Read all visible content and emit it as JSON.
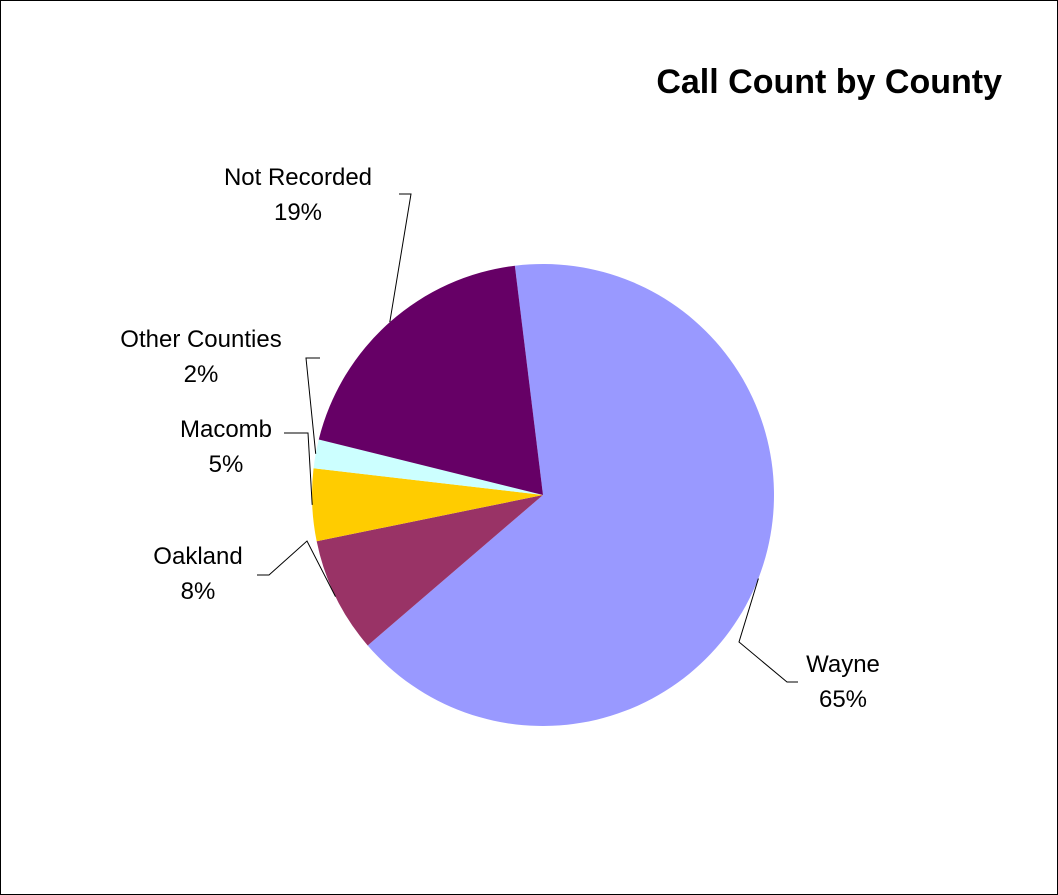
{
  "chart_data": {
    "type": "pie",
    "title": "Call Count by County",
    "slices": [
      {
        "label": "Wayne",
        "value": 65,
        "value_label": "65%",
        "color": "#9999FF"
      },
      {
        "label": "Oakland",
        "value": 8,
        "value_label": "8%",
        "color": "#993366"
      },
      {
        "label": "Macomb",
        "value": 5,
        "value_label": "5%",
        "color": "#FFCC00"
      },
      {
        "label": "Other Counties",
        "value": 2,
        "value_label": "2%",
        "color": "#CCFFFF"
      },
      {
        "label": "Not Recorded",
        "value": 19,
        "value_label": "19%",
        "color": "#660066"
      }
    ],
    "start_angle_deg": 97,
    "direction": "clockwise",
    "legend": "none",
    "data_labels": "category-name-and-percent"
  }
}
